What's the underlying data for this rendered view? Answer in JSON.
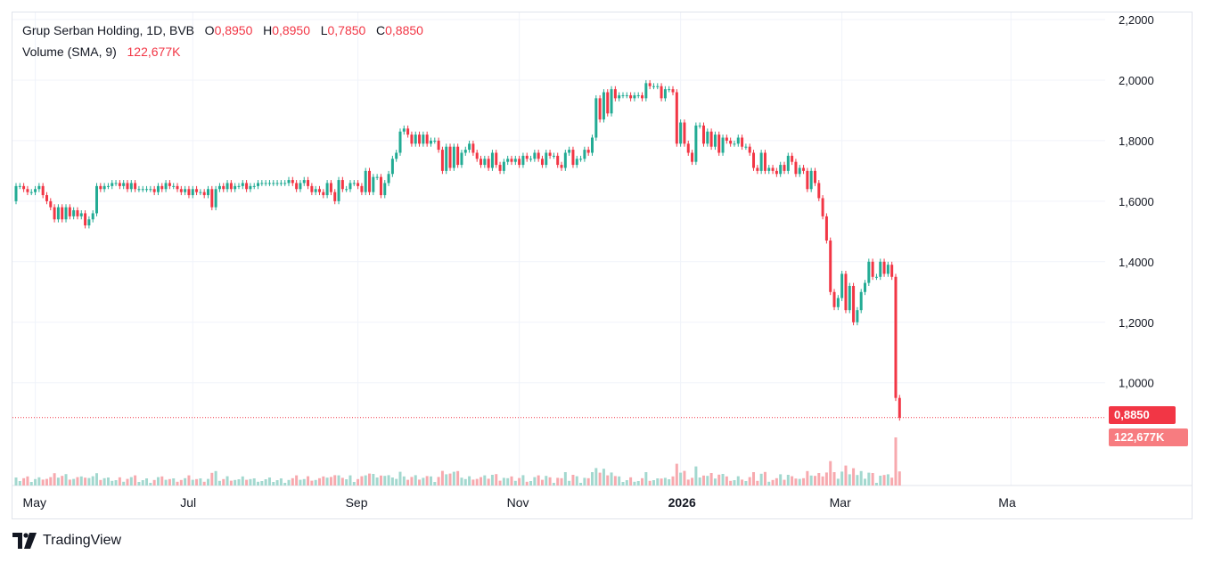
{
  "legend": {
    "symbol": "Grup Serban Holding, 1D, BVB",
    "o_label": "O",
    "o_value": "0,8950",
    "h_label": "H",
    "h_value": "0,8950",
    "l_label": "L",
    "l_value": "0,7850",
    "c_label": "C",
    "c_value": "0,8850",
    "volume_label": "Volume (SMA, 9)",
    "volume_value": "122,677K"
  },
  "last_price_label": "0,8850",
  "last_volume_label": "122,677K",
  "brand": "TradingView",
  "colors": {
    "up": "#22ab94",
    "down": "#f23645",
    "vol_up": "#a3d8cf",
    "vol_down": "#f7a9ae"
  },
  "chart_data": {
    "type": "candlestick",
    "title": "Grup Serban Holding, 1D, BVB",
    "y_ticks": [
      "2,2000",
      "2,0000",
      "1,8000",
      "1,6000",
      "1,4000",
      "1,2000",
      "1,0000"
    ],
    "y_tick_values": [
      2.2,
      2.0,
      1.8,
      1.6,
      1.4,
      1.2,
      1.0
    ],
    "ylim": [
      0.64,
      2.2
    ],
    "x_ticks": [
      "May",
      "Jul",
      "Sep",
      "Nov",
      "2026",
      "Mar",
      "Ma"
    ],
    "x_tick_bold": [
      false,
      false,
      false,
      false,
      true,
      false,
      false
    ],
    "x_tick_index": [
      5,
      46,
      89,
      131,
      173,
      215,
      259
    ],
    "last_price": 0.885,
    "grid": true,
    "series_points": [
      [
        1.6,
        1.65
      ],
      [
        1.65,
        1.65
      ],
      [
        1.65,
        1.64
      ],
      [
        1.64,
        1.63
      ],
      [
        1.63,
        1.63
      ],
      [
        1.63,
        1.64
      ],
      [
        1.64,
        1.65
      ],
      [
        1.65,
        1.62
      ],
      [
        1.62,
        1.6
      ],
      [
        1.6,
        1.58
      ],
      [
        1.58,
        1.54
      ],
      [
        1.54,
        1.58
      ],
      [
        1.58,
        1.54
      ],
      [
        1.54,
        1.58
      ],
      [
        1.58,
        1.55
      ],
      [
        1.55,
        1.57
      ],
      [
        1.57,
        1.55
      ],
      [
        1.55,
        1.56
      ],
      [
        1.56,
        1.52
      ],
      [
        1.52,
        1.54
      ],
      [
        1.54,
        1.56
      ],
      [
        1.56,
        1.65
      ],
      [
        1.65,
        1.64
      ],
      [
        1.64,
        1.65
      ],
      [
        1.65,
        1.65
      ],
      [
        1.65,
        1.66
      ],
      [
        1.66,
        1.66
      ],
      [
        1.66,
        1.65
      ],
      [
        1.65,
        1.66
      ],
      [
        1.66,
        1.64
      ],
      [
        1.64,
        1.66
      ],
      [
        1.66,
        1.64
      ],
      [
        1.64,
        1.64
      ],
      [
        1.64,
        1.64
      ],
      [
        1.64,
        1.64
      ],
      [
        1.64,
        1.64
      ],
      [
        1.64,
        1.63
      ],
      [
        1.63,
        1.65
      ],
      [
        1.65,
        1.64
      ],
      [
        1.64,
        1.66
      ],
      [
        1.66,
        1.65
      ],
      [
        1.65,
        1.65
      ],
      [
        1.65,
        1.64
      ],
      [
        1.64,
        1.63
      ],
      [
        1.63,
        1.64
      ],
      [
        1.64,
        1.62
      ],
      [
        1.62,
        1.64
      ],
      [
        1.64,
        1.63
      ],
      [
        1.63,
        1.63
      ],
      [
        1.63,
        1.62
      ],
      [
        1.62,
        1.64
      ],
      [
        1.64,
        1.58
      ],
      [
        1.58,
        1.64
      ],
      [
        1.64,
        1.65
      ],
      [
        1.65,
        1.64
      ],
      [
        1.64,
        1.66
      ],
      [
        1.66,
        1.64
      ],
      [
        1.64,
        1.65
      ],
      [
        1.65,
        1.65
      ],
      [
        1.65,
        1.66
      ],
      [
        1.66,
        1.64
      ],
      [
        1.64,
        1.65
      ],
      [
        1.65,
        1.65
      ],
      [
        1.65,
        1.66
      ],
      [
        1.66,
        1.66
      ],
      [
        1.66,
        1.66
      ],
      [
        1.66,
        1.66
      ],
      [
        1.66,
        1.66
      ],
      [
        1.66,
        1.66
      ],
      [
        1.66,
        1.66
      ],
      [
        1.66,
        1.66
      ],
      [
        1.66,
        1.67
      ],
      [
        1.67,
        1.66
      ],
      [
        1.66,
        1.64
      ],
      [
        1.64,
        1.66
      ],
      [
        1.66,
        1.67
      ],
      [
        1.67,
        1.65
      ],
      [
        1.65,
        1.63
      ],
      [
        1.63,
        1.64
      ],
      [
        1.64,
        1.63
      ],
      [
        1.63,
        1.62
      ],
      [
        1.62,
        1.66
      ],
      [
        1.66,
        1.63
      ],
      [
        1.63,
        1.6
      ],
      [
        1.6,
        1.67
      ],
      [
        1.67,
        1.64
      ],
      [
        1.64,
        1.64
      ],
      [
        1.64,
        1.66
      ],
      [
        1.66,
        1.66
      ],
      [
        1.66,
        1.65
      ],
      [
        1.65,
        1.63
      ],
      [
        1.63,
        1.7
      ],
      [
        1.7,
        1.63
      ],
      [
        1.63,
        1.68
      ],
      [
        1.68,
        1.68
      ],
      [
        1.68,
        1.62
      ],
      [
        1.62,
        1.66
      ],
      [
        1.66,
        1.69
      ],
      [
        1.69,
        1.74
      ],
      [
        1.74,
        1.76
      ],
      [
        1.76,
        1.83
      ],
      [
        1.83,
        1.84
      ],
      [
        1.84,
        1.82
      ],
      [
        1.82,
        1.79
      ],
      [
        1.79,
        1.82
      ],
      [
        1.82,
        1.79
      ],
      [
        1.79,
        1.82
      ],
      [
        1.82,
        1.79
      ],
      [
        1.79,
        1.8
      ],
      [
        1.8,
        1.8
      ],
      [
        1.8,
        1.77
      ],
      [
        1.77,
        1.7
      ],
      [
        1.7,
        1.78
      ],
      [
        1.78,
        1.71
      ],
      [
        1.71,
        1.78
      ],
      [
        1.78,
        1.72
      ],
      [
        1.72,
        1.76
      ],
      [
        1.76,
        1.77
      ],
      [
        1.77,
        1.79
      ],
      [
        1.79,
        1.76
      ],
      [
        1.76,
        1.74
      ],
      [
        1.74,
        1.72
      ],
      [
        1.72,
        1.74
      ],
      [
        1.74,
        1.71
      ],
      [
        1.71,
        1.76
      ],
      [
        1.76,
        1.72
      ],
      [
        1.72,
        1.7
      ],
      [
        1.7,
        1.73
      ],
      [
        1.73,
        1.74
      ],
      [
        1.74,
        1.73
      ],
      [
        1.73,
        1.74
      ],
      [
        1.74,
        1.72
      ],
      [
        1.72,
        1.75
      ],
      [
        1.75,
        1.74
      ],
      [
        1.74,
        1.74
      ],
      [
        1.74,
        1.76
      ],
      [
        1.76,
        1.74
      ],
      [
        1.74,
        1.72
      ],
      [
        1.72,
        1.76
      ],
      [
        1.76,
        1.75
      ],
      [
        1.75,
        1.75
      ],
      [
        1.75,
        1.72
      ],
      [
        1.72,
        1.71
      ],
      [
        1.71,
        1.76
      ],
      [
        1.76,
        1.77
      ],
      [
        1.77,
        1.72
      ],
      [
        1.72,
        1.74
      ],
      [
        1.74,
        1.74
      ],
      [
        1.74,
        1.77
      ],
      [
        1.77,
        1.76
      ],
      [
        1.76,
        1.81
      ],
      [
        1.81,
        1.94
      ],
      [
        1.94,
        1.87
      ],
      [
        1.87,
        1.96
      ],
      [
        1.96,
        1.89
      ],
      [
        1.89,
        1.97
      ],
      [
        1.97,
        1.94
      ],
      [
        1.94,
        1.95
      ],
      [
        1.95,
        1.95
      ],
      [
        1.95,
        1.95
      ],
      [
        1.95,
        1.94
      ],
      [
        1.94,
        1.95
      ],
      [
        1.95,
        1.95
      ],
      [
        1.95,
        1.94
      ],
      [
        1.94,
        1.99
      ],
      [
        1.99,
        1.98
      ],
      [
        1.98,
        1.98
      ],
      [
        1.98,
        1.98
      ],
      [
        1.98,
        1.94
      ],
      [
        1.94,
        1.97
      ],
      [
        1.97,
        1.97
      ],
      [
        1.97,
        1.96
      ],
      [
        1.96,
        1.79
      ],
      [
        1.79,
        1.86
      ],
      [
        1.86,
        1.79
      ],
      [
        1.79,
        1.76
      ],
      [
        1.76,
        1.73
      ],
      [
        1.73,
        1.85
      ],
      [
        1.85,
        1.85
      ],
      [
        1.85,
        1.79
      ],
      [
        1.79,
        1.83
      ],
      [
        1.83,
        1.78
      ],
      [
        1.78,
        1.82
      ],
      [
        1.82,
        1.76
      ],
      [
        1.76,
        1.81
      ],
      [
        1.81,
        1.8
      ],
      [
        1.8,
        1.79
      ],
      [
        1.79,
        1.79
      ],
      [
        1.79,
        1.81
      ],
      [
        1.81,
        1.78
      ],
      [
        1.78,
        1.78
      ],
      [
        1.78,
        1.76
      ],
      [
        1.76,
        1.71
      ],
      [
        1.71,
        1.7
      ],
      [
        1.7,
        1.76
      ],
      [
        1.76,
        1.7
      ],
      [
        1.7,
        1.71
      ],
      [
        1.71,
        1.7
      ],
      [
        1.7,
        1.69
      ],
      [
        1.69,
        1.72
      ],
      [
        1.72,
        1.7
      ],
      [
        1.7,
        1.75
      ],
      [
        1.75,
        1.73
      ],
      [
        1.73,
        1.69
      ],
      [
        1.69,
        1.71
      ],
      [
        1.71,
        1.7
      ],
      [
        1.7,
        1.64
      ],
      [
        1.64,
        1.7
      ],
      [
        1.7,
        1.66
      ],
      [
        1.66,
        1.61
      ],
      [
        1.61,
        1.55
      ],
      [
        1.55,
        1.47
      ],
      [
        1.47,
        1.3
      ],
      [
        1.3,
        1.25
      ],
      [
        1.25,
        1.28
      ],
      [
        1.28,
        1.36
      ],
      [
        1.36,
        1.24
      ],
      [
        1.24,
        1.32
      ],
      [
        1.32,
        1.2
      ],
      [
        1.2,
        1.24
      ],
      [
        1.24,
        1.3
      ],
      [
        1.3,
        1.33
      ],
      [
        1.33,
        1.4
      ],
      [
        1.4,
        1.35
      ],
      [
        1.35,
        1.35
      ],
      [
        1.35,
        1.4
      ],
      [
        1.4,
        1.36
      ],
      [
        1.36,
        1.39
      ],
      [
        1.39,
        1.35
      ],
      [
        1.35,
        0.95
      ],
      [
        0.95,
        0.885
      ]
    ],
    "volume_sma_last": "122,677K"
  }
}
